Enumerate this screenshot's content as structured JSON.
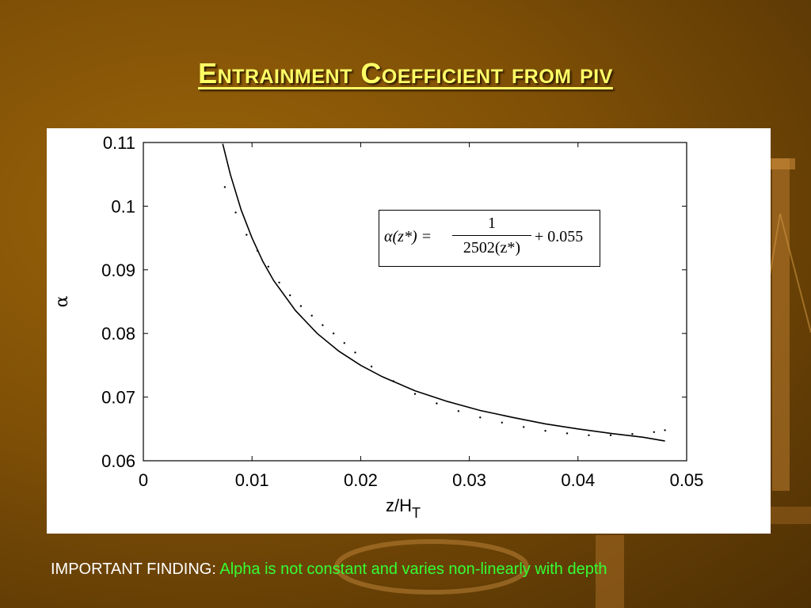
{
  "slide": {
    "title": "Entrainment Coefficient from piv",
    "footer_lead": "IMPORTANT FINDING: ",
    "footer_message": "Alpha is not constant and varies non-linearly with depth"
  },
  "equation": {
    "lhs": "α(z*) =",
    "numerator": "1",
    "denominator": "2502(z*)",
    "rhs": "+ 0.055"
  },
  "chart_data": {
    "type": "line",
    "xlabel": "z/H",
    "xlabel_subscript": "T",
    "ylabel": "α",
    "xlim": [
      0,
      0.05
    ],
    "ylim": [
      0.06,
      0.11
    ],
    "xticks": [
      "0",
      "0.01",
      "0.02",
      "0.03",
      "0.04",
      "0.05"
    ],
    "yticks": [
      "0.06",
      "0.07",
      "0.08",
      "0.09",
      "0.1",
      "0.11"
    ],
    "grid": false,
    "series": [
      {
        "style": "solid",
        "x": [
          0.0073,
          0.008,
          0.009,
          0.01,
          0.011,
          0.012,
          0.014,
          0.016,
          0.018,
          0.02,
          0.022,
          0.025,
          0.028,
          0.031,
          0.034,
          0.037,
          0.04,
          0.043,
          0.046,
          0.048
        ],
        "y": [
          0.1098,
          0.105,
          0.0994,
          0.095,
          0.0913,
          0.0883,
          0.0836,
          0.08,
          0.0772,
          0.075,
          0.0732,
          0.071,
          0.0693,
          0.0679,
          0.0668,
          0.0658,
          0.065,
          0.0643,
          0.0637,
          0.0631
        ]
      },
      {
        "style": "dotted",
        "x": [
          0.0075,
          0.0085,
          0.0095,
          0.0105,
          0.0115,
          0.0125,
          0.0135,
          0.0145,
          0.0155,
          0.0165,
          0.0175,
          0.0185,
          0.0195,
          0.021,
          0.023,
          0.025,
          0.027,
          0.029,
          0.031,
          0.033,
          0.035,
          0.037,
          0.039,
          0.041,
          0.043,
          0.045,
          0.047,
          0.048
        ],
        "y": [
          0.103,
          0.099,
          0.0955,
          0.093,
          0.0905,
          0.088,
          0.086,
          0.0843,
          0.0828,
          0.0813,
          0.08,
          0.0785,
          0.077,
          0.0748,
          0.0725,
          0.0705,
          0.069,
          0.0678,
          0.0668,
          0.066,
          0.0653,
          0.0647,
          0.0643,
          0.064,
          0.064,
          0.0642,
          0.0645,
          0.0648
        ]
      }
    ]
  }
}
